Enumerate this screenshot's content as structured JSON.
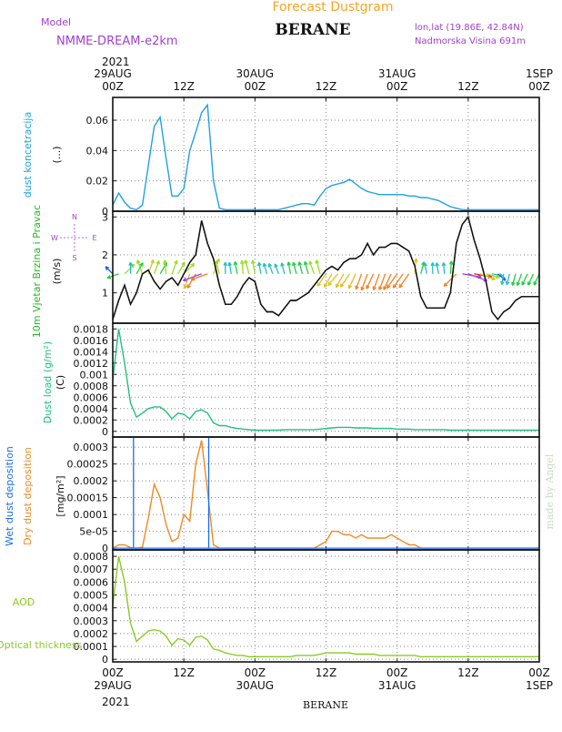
{
  "header": {
    "title": "Forecast Dustgram",
    "model_label": "Model",
    "model_name": "NMME-DREAM-e2km",
    "station": "BERANE",
    "lonlat": "lon,lat (19.86E, 42.84N)",
    "altitude": "Nadmorska Visina 691m",
    "watermark": "made by Angel",
    "footer_station": "BERANE"
  },
  "colors": {
    "title": "#f5a623",
    "model": "#a040d0",
    "conc": "#1ea0e6",
    "wind_label": "#22bb22",
    "load": "#20c080",
    "wet": "#1a6ef0",
    "dry": "#f08a20",
    "aod": "#88cc22",
    "compass": "#a040d0"
  },
  "time_axis": {
    "top_year": "2021",
    "bottom_year": "2021",
    "ticks": [
      {
        "hour": 0,
        "top": "00Z",
        "bottom": "29AUG"
      },
      {
        "hour": 12,
        "top": "12Z",
        "bottom": ""
      },
      {
        "hour": 24,
        "top": "00Z",
        "bottom": "30AUG"
      },
      {
        "hour": 36,
        "top": "12Z",
        "bottom": ""
      },
      {
        "hour": 48,
        "top": "00Z",
        "bottom": "31AUG"
      },
      {
        "hour": 60,
        "top": "12Z",
        "bottom": ""
      },
      {
        "hour": 72,
        "top": "00Z",
        "bottom": "1SEP"
      }
    ]
  },
  "compass": {
    "n": "N",
    "s": "S",
    "w": "W",
    "e": "E"
  },
  "chart_data": [
    {
      "type": "line",
      "id": "conc",
      "ylabel": "dust koncetracija",
      "unit": "(...)",
      "ylim": [
        0,
        0.075
      ],
      "yticks": [
        0,
        0.02,
        0.04,
        0.06
      ],
      "ytick_labels": [
        "0",
        "0.02",
        "0.04",
        "0.06"
      ],
      "x": [
        0,
        1,
        2,
        3,
        4,
        5,
        6,
        7,
        8,
        9,
        10,
        11,
        12,
        13,
        14,
        15,
        16,
        17,
        18,
        19,
        20,
        21,
        22,
        23,
        24,
        25,
        26,
        27,
        28,
        29,
        30,
        31,
        32,
        33,
        34,
        35,
        36,
        37,
        38,
        39,
        40,
        41,
        42,
        43,
        44,
        45,
        46,
        47,
        48,
        49,
        50,
        51,
        52,
        53,
        54,
        55,
        56,
        57,
        58,
        59,
        60,
        61,
        62,
        63,
        64,
        65,
        66,
        67,
        68,
        69,
        70,
        71,
        72
      ],
      "series": [
        {
          "values": [
            0.004,
            0.012,
            0.006,
            0.002,
            0.001,
            0.004,
            0.03,
            0.056,
            0.062,
            0.035,
            0.01,
            0.01,
            0.015,
            0.04,
            0.052,
            0.065,
            0.07,
            0.02,
            0.002,
            0.001,
            0.001,
            0.001,
            0.001,
            0.001,
            0.001,
            0.001,
            0.001,
            0.001,
            0.001,
            0.002,
            0.003,
            0.004,
            0.005,
            0.005,
            0.004,
            0.01,
            0.015,
            0.017,
            0.018,
            0.019,
            0.021,
            0.018,
            0.015,
            0.013,
            0.012,
            0.011,
            0.011,
            0.011,
            0.011,
            0.011,
            0.01,
            0.01,
            0.009,
            0.009,
            0.008,
            0.007,
            0.005,
            0.003,
            0.002,
            0.001,
            0.001,
            0.001,
            0.001,
            0.001,
            0.001,
            0.001,
            0.001,
            0.001,
            0.001,
            0.001,
            0.001,
            0.001,
            0.001
          ]
        }
      ]
    },
    {
      "type": "line",
      "id": "wind",
      "ylabel": "10m Vjetar Brzina i Pravac",
      "unit": "(m/s)",
      "ylim": [
        0.2,
        3.15
      ],
      "yticks": [
        1,
        2,
        3
      ],
      "ytick_labels": [
        "1",
        "2",
        "3"
      ],
      "x": [
        0,
        1,
        2,
        3,
        4,
        5,
        6,
        7,
        8,
        9,
        10,
        11,
        12,
        13,
        14,
        15,
        16,
        17,
        18,
        19,
        20,
        21,
        22,
        23,
        24,
        25,
        26,
        27,
        28,
        29,
        30,
        31,
        32,
        33,
        34,
        35,
        36,
        37,
        38,
        39,
        40,
        41,
        42,
        43,
        44,
        45,
        46,
        47,
        48,
        49,
        50,
        51,
        52,
        53,
        54,
        55,
        56,
        57,
        58,
        59,
        60,
        61,
        62,
        63,
        64,
        65,
        66,
        67,
        68,
        69,
        70,
        71,
        72
      ],
      "series": [
        {
          "values": [
            0.3,
            0.8,
            1.2,
            0.7,
            1.0,
            1.5,
            1.6,
            1.3,
            1.1,
            1.3,
            1.4,
            1.2,
            1.5,
            1.8,
            2.0,
            2.9,
            2.3,
            1.9,
            1.2,
            0.7,
            0.7,
            0.9,
            1.2,
            1.4,
            1.3,
            0.7,
            0.5,
            0.5,
            0.4,
            0.6,
            0.8,
            0.8,
            0.9,
            1.0,
            1.2,
            1.4,
            1.6,
            1.7,
            1.6,
            1.8,
            1.9,
            1.9,
            2.0,
            2.3,
            2.0,
            2.2,
            2.2,
            2.3,
            2.3,
            2.2,
            2.1,
            1.7,
            0.9,
            0.6,
            0.6,
            0.6,
            0.6,
            1.0,
            2.3,
            2.8,
            3.0,
            2.4,
            1.9,
            1.3,
            0.5,
            0.3,
            0.5,
            0.6,
            0.8,
            0.9,
            0.9,
            0.9,
            0.9
          ]
        }
      ],
      "wind_dirs": [
        315,
        250,
        45,
        0,
        30,
        340,
        20,
        20,
        30,
        355,
        20,
        30,
        45,
        200,
        210,
        250,
        250,
        20,
        345,
        0,
        350,
        350,
        355,
        345,
        350,
        350,
        345,
        340,
        340,
        345,
        350,
        345,
        345,
        345,
        340,
        345,
        215,
        210,
        220,
        210,
        215,
        205,
        200,
        200,
        205,
        200,
        200,
        205,
        215,
        215,
        215,
        5,
        15,
        350,
        0,
        350,
        355,
        5,
        225,
        100,
        110,
        100,
        110,
        105,
        100,
        130,
        190,
        195,
        195,
        200,
        205,
        205,
        205
      ]
    },
    {
      "type": "line",
      "id": "load",
      "ylabel": "Dust load (g/m²)",
      "unit": "(C)",
      "ylim": [
        -0.0001,
        0.0019
      ],
      "yticks": [
        0,
        0.0002,
        0.0004,
        0.0006,
        0.0008,
        0.001,
        0.0012,
        0.0014,
        0.0016,
        0.0018
      ],
      "ytick_labels": [
        "0",
        "0.0002",
        "0.0004",
        "0.0006",
        "0.0008",
        "0.001",
        "0.0012",
        "0.0014",
        "0.0016",
        "0.0018"
      ],
      "x": [
        0,
        1,
        2,
        3,
        4,
        5,
        6,
        7,
        8,
        9,
        10,
        11,
        12,
        13,
        14,
        15,
        16,
        17,
        18,
        19,
        20,
        21,
        22,
        23,
        24,
        25,
        26,
        27,
        28,
        29,
        30,
        31,
        32,
        33,
        34,
        35,
        36,
        37,
        38,
        39,
        40,
        41,
        42,
        43,
        44,
        45,
        46,
        47,
        48,
        49,
        50,
        51,
        52,
        53,
        54,
        55,
        56,
        57,
        58,
        59,
        60,
        61,
        62,
        63,
        64,
        65,
        66,
        67,
        68,
        69,
        70,
        71,
        72
      ],
      "series": [
        {
          "values": [
            0.0009,
            0.0018,
            0.0012,
            0.0005,
            0.00025,
            0.00032,
            0.0004,
            0.00043,
            0.00043,
            0.00035,
            0.00022,
            0.00032,
            0.0003,
            0.00022,
            0.00035,
            0.00038,
            0.00032,
            0.00015,
            0.0001,
            0.0001,
            7e-05,
            5e-05,
            4e-05,
            3e-05,
            2e-05,
            2e-05,
            2e-05,
            2e-05,
            2e-05,
            3e-05,
            3e-05,
            3e-05,
            3e-05,
            3e-05,
            3e-05,
            4e-05,
            5e-05,
            6e-05,
            7e-05,
            7e-05,
            7e-05,
            6e-05,
            6e-05,
            6e-05,
            5e-05,
            5e-05,
            5e-05,
            5e-05,
            4e-05,
            4e-05,
            4e-05,
            3e-05,
            3e-05,
            3e-05,
            3e-05,
            3e-05,
            3e-05,
            2e-05,
            2e-05,
            2e-05,
            2e-05,
            2e-05,
            2e-05,
            2e-05,
            2e-05,
            2e-05,
            2e-05,
            2e-05,
            2e-05,
            2e-05,
            2e-05,
            2e-05,
            2e-05
          ]
        }
      ]
    },
    {
      "type": "line",
      "id": "dep",
      "ylabel": "",
      "series_names": [
        "Wet dust deposition",
        "Dry dust deposition"
      ],
      "unit": "[mg/m²]",
      "ylim": [
        -5e-06,
        0.00033
      ],
      "yticks": [
        0,
        5e-05,
        0.0001,
        0.00015,
        0.0002,
        0.00025,
        0.0003
      ],
      "ytick_labels": [
        "0",
        "5e-05",
        "0.0001",
        "0.00015",
        "0.0002",
        "0.00025",
        "0.0003"
      ],
      "x": [
        0,
        1,
        2,
        3,
        4,
        5,
        6,
        7,
        8,
        9,
        10,
        11,
        12,
        13,
        14,
        15,
        16,
        17,
        18,
        19,
        20,
        21,
        22,
        23,
        24,
        25,
        26,
        27,
        28,
        29,
        30,
        31,
        32,
        33,
        34,
        35,
        36,
        37,
        38,
        39,
        40,
        41,
        42,
        43,
        44,
        45,
        46,
        47,
        48,
        49,
        50,
        51,
        52,
        53,
        54,
        55,
        56,
        57,
        58,
        59,
        60,
        61,
        62,
        63,
        64,
        65,
        66,
        67,
        68,
        69,
        70,
        71,
        72
      ],
      "series": [
        {
          "name": "Dry dust deposition",
          "values": [
            0,
            1e-05,
            1e-05,
            2e-06,
            0,
            3e-06,
            9e-05,
            0.00019,
            0.00015,
            7e-05,
            2e-05,
            3e-05,
            0.0001,
            8e-05,
            0.00025,
            0.00032,
            0.00017,
            1e-05,
            0,
            0,
            0,
            0,
            0,
            0,
            0,
            0,
            0,
            0,
            0,
            0,
            0,
            0,
            0,
            0,
            0,
            1e-05,
            2e-05,
            5e-05,
            5e-05,
            4e-05,
            4e-05,
            3e-05,
            4e-05,
            3e-05,
            3e-05,
            3e-05,
            3e-05,
            4e-05,
            3e-05,
            2e-05,
            1e-05,
            1e-05,
            0,
            0,
            0,
            0,
            0,
            0,
            0,
            0,
            0,
            0,
            0,
            0,
            0,
            0,
            0,
            0,
            0,
            0,
            0,
            0,
            0
          ]
        },
        {
          "name": "Wet dust deposition",
          "x_spikes": [
            3.5,
            16.2
          ],
          "spike_top": 0.00037
        }
      ]
    },
    {
      "type": "line",
      "id": "aod",
      "ylabel": "AOD",
      "xlabel": "Optical thickness",
      "ylim": [
        -2e-05,
        0.00085
      ],
      "yticks": [
        0,
        0.0001,
        0.0002,
        0.0003,
        0.0004,
        0.0005,
        0.0006,
        0.0007,
        0.0008
      ],
      "ytick_labels": [
        "0",
        "0.0001",
        "0.0002",
        "0.0003",
        "0.0004",
        "0.0005",
        "0.0006",
        "0.0007",
        "0.0008"
      ],
      "x": [
        0,
        1,
        2,
        3,
        4,
        5,
        6,
        7,
        8,
        9,
        10,
        11,
        12,
        13,
        14,
        15,
        16,
        17,
        18,
        19,
        20,
        21,
        22,
        23,
        24,
        25,
        26,
        27,
        28,
        29,
        30,
        31,
        32,
        33,
        34,
        35,
        36,
        37,
        38,
        39,
        40,
        41,
        42,
        43,
        44,
        45,
        46,
        47,
        48,
        49,
        50,
        51,
        52,
        53,
        54,
        55,
        56,
        57,
        58,
        59,
        60,
        61,
        62,
        63,
        64,
        65,
        66,
        67,
        68,
        69,
        70,
        71,
        72
      ],
      "series": [
        {
          "values": [
            0.00042,
            0.0008,
            0.0006,
            0.00028,
            0.00014,
            0.00018,
            0.00022,
            0.00023,
            0.00022,
            0.00018,
            0.00011,
            0.00016,
            0.00015,
            0.00011,
            0.00017,
            0.00018,
            0.00015,
            8e-05,
            7e-05,
            5e-05,
            4e-05,
            3e-05,
            3e-05,
            2e-05,
            2e-05,
            2e-05,
            2e-05,
            2e-05,
            2e-05,
            2e-05,
            2e-05,
            3e-05,
            3e-05,
            3e-05,
            3e-05,
            4e-05,
            5e-05,
            5e-05,
            5e-05,
            5e-05,
            5e-05,
            4e-05,
            4e-05,
            4e-05,
            4e-05,
            3e-05,
            3e-05,
            3e-05,
            3e-05,
            3e-05,
            3e-05,
            3e-05,
            2e-05,
            2e-05,
            2e-05,
            2e-05,
            2e-05,
            2e-05,
            2e-05,
            2e-05,
            2e-05,
            2e-05,
            2e-05,
            2e-05,
            2e-05,
            2e-05,
            2e-05,
            2e-05,
            2e-05,
            2e-05,
            2e-05,
            2e-05,
            2e-05
          ]
        }
      ]
    }
  ]
}
